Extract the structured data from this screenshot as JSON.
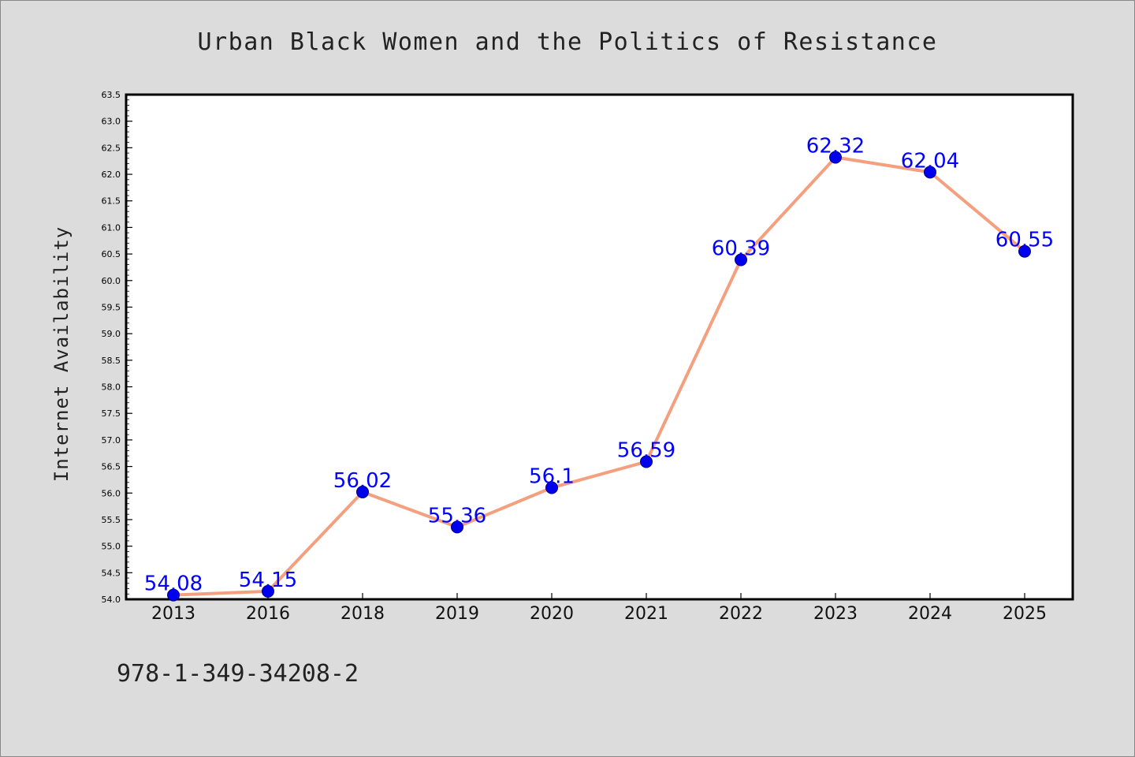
{
  "chart_data": {
    "type": "line",
    "title": "Urban Black Women and the Politics of Resistance",
    "xlabel": "",
    "ylabel": "Internet Availability",
    "categories": [
      "2013",
      "2016",
      "2018",
      "2019",
      "2020",
      "2021",
      "2022",
      "2023",
      "2024",
      "2025"
    ],
    "series": [
      {
        "values": [
          54.08,
          54.15,
          56.02,
          55.36,
          56.1,
          56.59,
          60.39,
          62.32,
          62.04,
          60.55
        ],
        "data_labels": [
          "54.08",
          "54.15",
          "56.02",
          "55.36",
          "56.1",
          "56.59",
          "60.39",
          "62.32",
          "62.04",
          "60.55"
        ]
      }
    ],
    "ylim": [
      54.0,
      63.5
    ],
    "yticks": [
      "54.0",
      "54.5",
      "55.0",
      "55.5",
      "56.0",
      "56.5",
      "57.0",
      "57.5",
      "58.0",
      "58.5",
      "59.0",
      "59.5",
      "60.0",
      "60.5",
      "61.0",
      "61.5",
      "62.0",
      "62.5",
      "63.0",
      "63.5"
    ],
    "grid": false,
    "legend": "none",
    "colors": {
      "line": "#f4a07f",
      "marker": "#0000ee",
      "label": "#0000ff",
      "background": "#dcdcdc",
      "plot_background": "#ffffff"
    }
  },
  "footer_text": "978-1-349-34208-2"
}
